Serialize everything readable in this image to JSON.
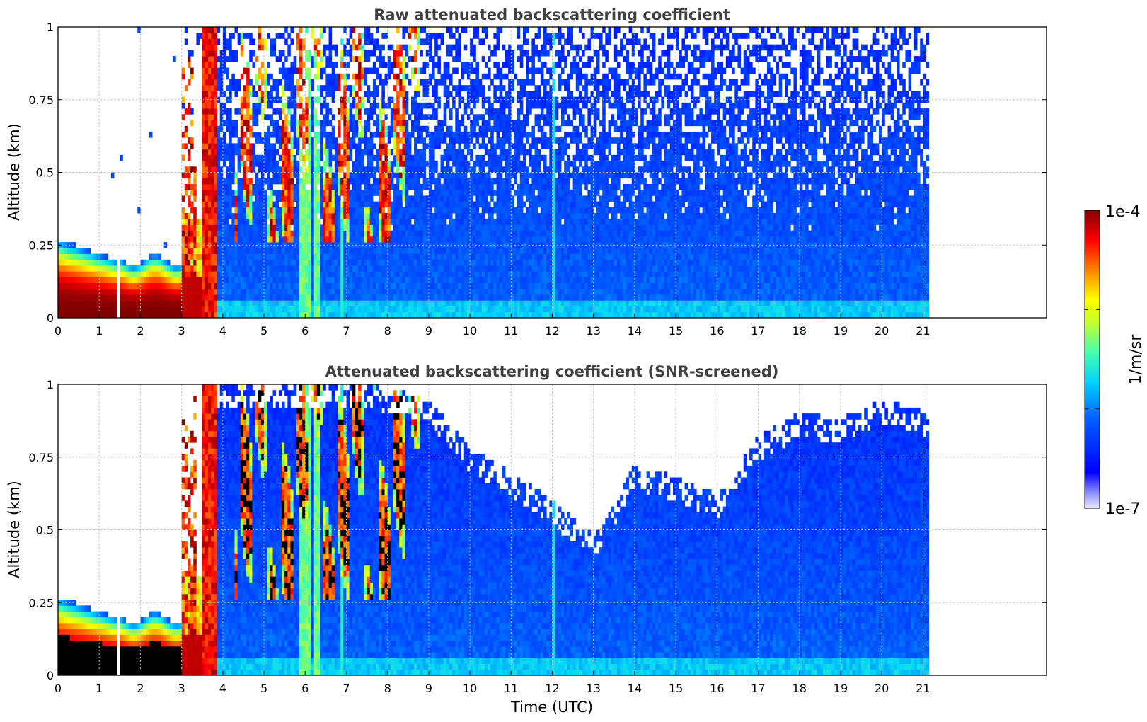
{
  "chart_data": [
    {
      "type": "heatmap",
      "title": "Raw attenuated backscattering coefficient",
      "xlabel": "",
      "ylabel": "Altitude (km)",
      "xlim": [
        0,
        24
      ],
      "ylim": [
        0,
        1
      ],
      "x_ticks": [
        "0",
        "1",
        "2",
        "3",
        "4",
        "5",
        "6",
        "7",
        "8",
        "9",
        "10",
        "11",
        "12",
        "13",
        "14",
        "15",
        "16",
        "17",
        "18",
        "19",
        "20",
        "21"
      ],
      "y_ticks": [
        "0",
        "0.25",
        "0.5",
        "0.75",
        "1"
      ],
      "grid": true,
      "data_end_time": 21.15,
      "features": [
        {
          "name": "surface layer",
          "t_start": 0,
          "t_end": 3.0,
          "top_km": 0.25,
          "level": "high"
        },
        {
          "name": "data gap",
          "t_start": 1.42,
          "t_end": 1.52
        },
        {
          "name": "fog/cloud column",
          "t_start": 3.5,
          "t_end": 3.85,
          "top_km": 1.0,
          "level": "saturated"
        },
        {
          "name": "broken cloud",
          "t_start": 4.3,
          "t_end": 8.8,
          "bottom_km": 0.25,
          "top_km": 1.0,
          "level": "high"
        },
        {
          "name": "bright streak",
          "t": 6.0,
          "level": "medium"
        },
        {
          "name": "bright streak",
          "t": 12.05,
          "level": "medium"
        },
        {
          "name": "noisy background",
          "t_start": 3.85,
          "t_end": 21.15,
          "level": "low"
        }
      ]
    },
    {
      "type": "heatmap",
      "title": "Attenuated backscattering coefficient (SNR-screened)",
      "xlabel": "Time (UTC)",
      "ylabel": "Altitude (km)",
      "xlim": [
        0,
        24
      ],
      "ylim": [
        0,
        1
      ],
      "x_ticks": [
        "0",
        "1",
        "2",
        "3",
        "4",
        "5",
        "6",
        "7",
        "8",
        "9",
        "10",
        "11",
        "12",
        "13",
        "14",
        "15",
        "16",
        "17",
        "18",
        "19",
        "20",
        "21"
      ],
      "y_ticks": [
        "0",
        "0.25",
        "0.5",
        "0.75",
        "1"
      ],
      "grid": true,
      "data_end_time": 21.15,
      "screened_top_km": [
        [
          0,
          0.3
        ],
        [
          1.5,
          0.22
        ],
        [
          3.0,
          0.35
        ],
        [
          3.5,
          1.0
        ],
        [
          4.5,
          1.0
        ],
        [
          7.5,
          1.0
        ],
        [
          9.0,
          0.95
        ],
        [
          10.0,
          0.78
        ],
        [
          11.0,
          0.7
        ],
        [
          12.0,
          0.6
        ],
        [
          13.0,
          0.48
        ],
        [
          14.0,
          0.72
        ],
        [
          15.0,
          0.68
        ],
        [
          16.0,
          0.62
        ],
        [
          17.0,
          0.82
        ],
        [
          18.0,
          0.9
        ],
        [
          19.0,
          0.88
        ],
        [
          20.0,
          0.95
        ],
        [
          21.15,
          0.9
        ]
      ],
      "features": [
        {
          "name": "surface layer",
          "t_start": 0,
          "t_end": 3.0,
          "top_km": 0.22,
          "level": "saturated-black"
        },
        {
          "name": "fog/cloud column",
          "t_start": 3.5,
          "t_end": 3.85,
          "top_km": 1.0,
          "level": "saturated"
        },
        {
          "name": "broken cloud",
          "t_start": 4.3,
          "t_end": 8.5,
          "bottom_km": 0.25,
          "top_km": 1.0,
          "level": "saturated-black"
        }
      ]
    }
  ],
  "colorbar": {
    "max_label": "1e-4",
    "min_label": "1e-7",
    "unit_label": "1/m/sr",
    "colormap": "jet",
    "low_color": "#e8e8ff",
    "high_color": "#800000"
  }
}
